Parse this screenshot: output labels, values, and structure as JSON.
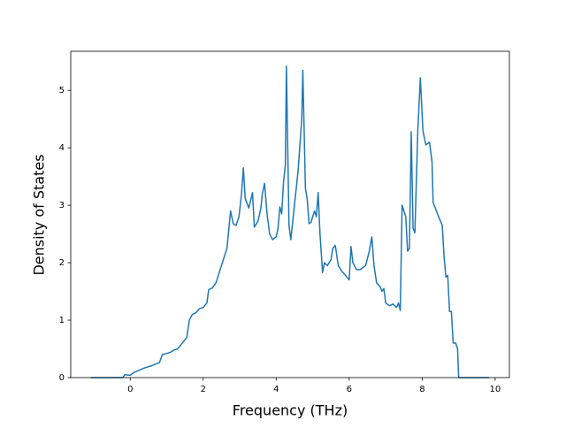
{
  "chart_data": {
    "type": "line",
    "xlabel": "Frequency (THz)",
    "ylabel": "Density of States",
    "color": "#1f77b4",
    "x": [
      -1.08,
      -0.2,
      -0.15,
      0,
      0.1,
      0.25,
      0.4,
      0.6,
      0.8,
      0.88,
      1.0,
      1.1,
      1.2,
      1.3,
      1.4,
      1.55,
      1.62,
      1.7,
      1.8,
      1.9,
      2.0,
      2.1,
      2.15,
      2.25,
      2.35,
      2.45,
      2.55,
      2.65,
      2.75,
      2.82,
      2.9,
      2.98,
      3.05,
      3.1,
      3.15,
      3.25,
      3.35,
      3.4,
      3.5,
      3.58,
      3.62,
      3.68,
      3.75,
      3.82,
      3.9,
      4.0,
      4.05,
      4.1,
      4.15,
      4.2,
      4.25,
      4.28,
      4.35,
      4.4,
      4.5,
      4.6,
      4.7,
      4.73,
      4.8,
      4.85,
      4.9,
      4.95,
      5.05,
      5.1,
      5.15,
      5.2,
      5.27,
      5.32,
      5.4,
      5.5,
      5.55,
      5.62,
      5.7,
      5.8,
      5.9,
      6.0,
      6.05,
      6.1,
      6.2,
      6.3,
      6.45,
      6.55,
      6.62,
      6.68,
      6.75,
      6.85,
      6.9,
      6.95,
      7.0,
      7.1,
      7.2,
      7.3,
      7.35,
      7.4,
      7.45,
      7.55,
      7.6,
      7.65,
      7.7,
      7.75,
      7.8,
      7.88,
      7.95,
      8.02,
      8.1,
      8.2,
      8.27,
      8.3,
      8.45,
      8.55,
      8.6,
      8.65,
      8.7,
      8.75,
      8.8,
      8.85,
      8.92,
      8.97,
      9.0,
      9.84
    ],
    "values": [
      0,
      0,
      0.05,
      0.04,
      0.09,
      0.13,
      0.17,
      0.21,
      0.26,
      0.4,
      0.42,
      0.44,
      0.48,
      0.5,
      0.58,
      0.7,
      1.0,
      1.1,
      1.13,
      1.2,
      1.22,
      1.3,
      1.53,
      1.56,
      1.65,
      1.85,
      2.05,
      2.25,
      2.9,
      2.68,
      2.65,
      2.8,
      3.2,
      3.65,
      3.12,
      2.95,
      3.22,
      2.62,
      2.72,
      2.95,
      3.2,
      3.38,
      2.85,
      2.5,
      2.4,
      2.45,
      2.6,
      2.97,
      2.85,
      3.4,
      3.7,
      5.42,
      2.65,
      2.4,
      3.0,
      3.6,
      4.5,
      5.35,
      3.3,
      3.1,
      2.68,
      2.7,
      2.9,
      2.8,
      3.22,
      2.5,
      1.83,
      2.0,
      1.95,
      2.05,
      2.25,
      2.3,
      1.95,
      1.85,
      1.78,
      1.7,
      2.28,
      2.0,
      1.88,
      1.88,
      1.95,
      2.2,
      2.45,
      1.95,
      1.65,
      1.58,
      1.5,
      1.55,
      1.3,
      1.25,
      1.28,
      1.22,
      1.3,
      1.17,
      3.0,
      2.8,
      2.2,
      2.25,
      4.28,
      2.6,
      2.52,
      4.3,
      5.22,
      4.3,
      4.05,
      4.1,
      3.75,
      3.05,
      2.8,
      2.65,
      2.1,
      1.75,
      1.78,
      1.15,
      1.15,
      0.6,
      0.6,
      0.5,
      0,
      0
    ],
    "xlim": [
      -1.63,
      10.39
    ],
    "xticks": [
      0,
      2,
      4,
      6,
      8,
      10
    ],
    "ylim": [
      0,
      5.68
    ],
    "yticks": [
      0,
      1,
      2,
      3,
      4,
      5
    ]
  }
}
